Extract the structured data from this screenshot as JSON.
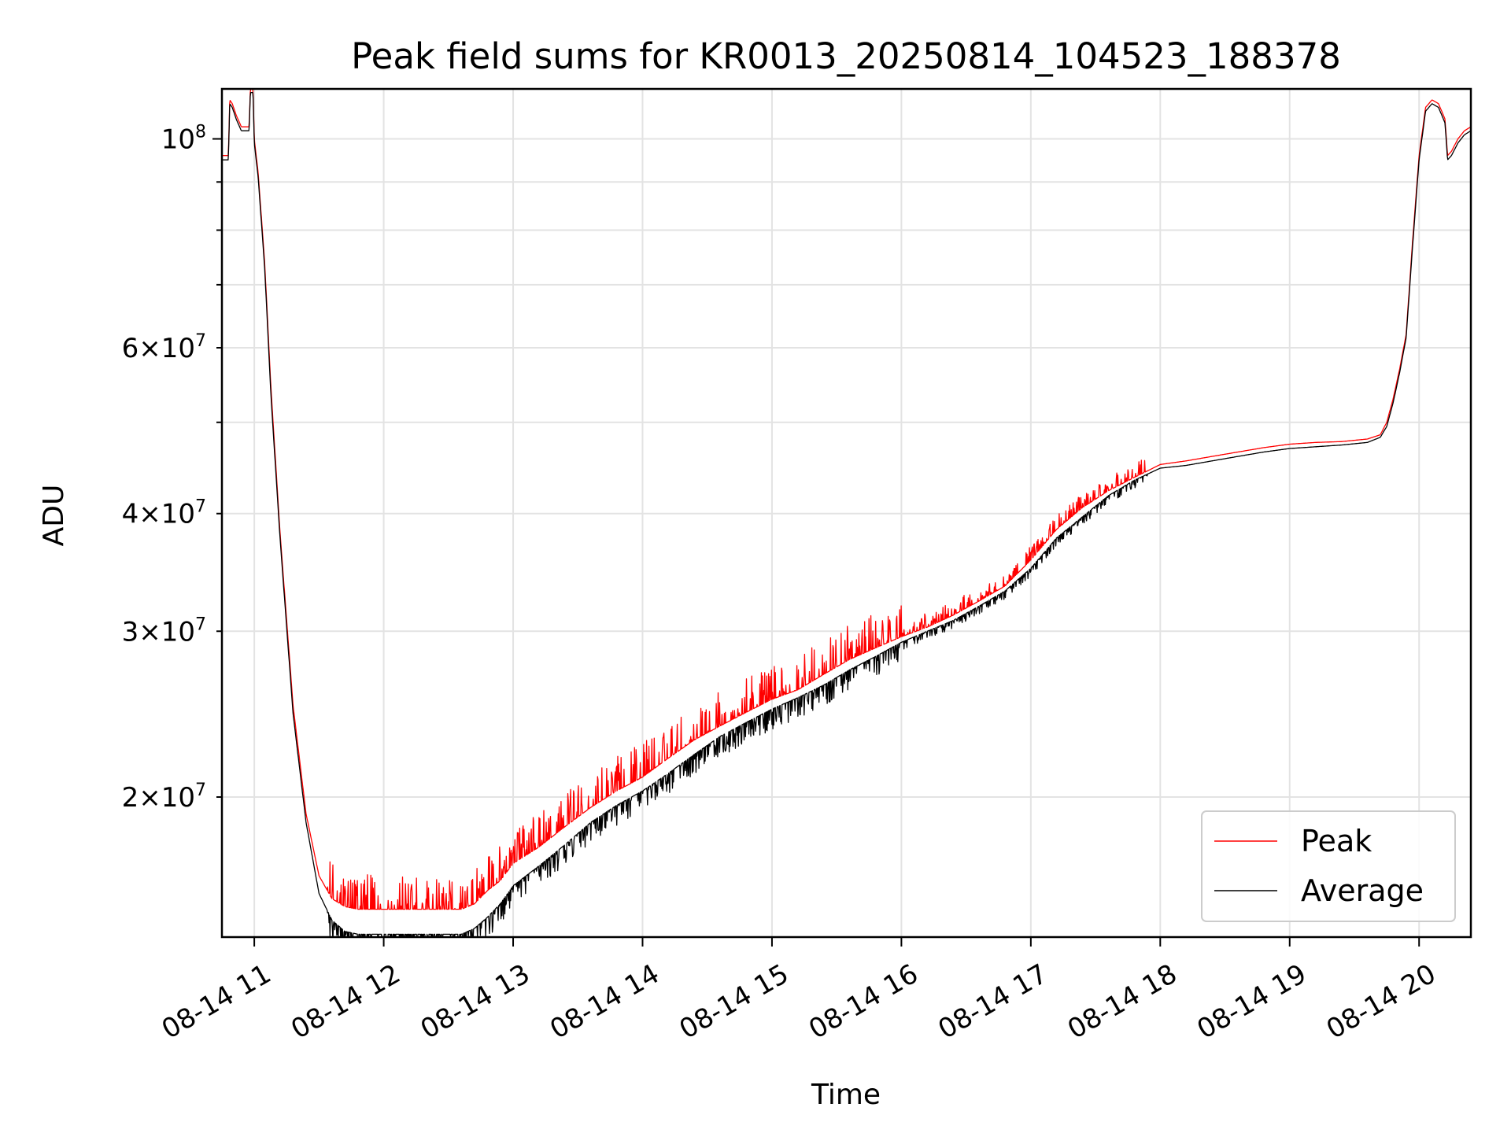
{
  "chart_data": {
    "type": "line",
    "title": "Peak field sums for KR0013_20250814_104523_188378",
    "xlabel": "Time",
    "ylabel": "ADU",
    "yscale": "log",
    "grid": true,
    "legend_position": "lower-right",
    "xlim": [
      10.75,
      20.4
    ],
    "ylim": [
      14200000,
      113000000
    ],
    "x_ticks": [
      {
        "value": 11,
        "label": "08-14 11"
      },
      {
        "value": 12,
        "label": "08-14 12"
      },
      {
        "value": 13,
        "label": "08-14 13"
      },
      {
        "value": 14,
        "label": "08-14 14"
      },
      {
        "value": 15,
        "label": "08-14 15"
      },
      {
        "value": 16,
        "label": "08-14 16"
      },
      {
        "value": 17,
        "label": "08-14 17"
      },
      {
        "value": 18,
        "label": "08-14 18"
      },
      {
        "value": 19,
        "label": "08-14 19"
      },
      {
        "value": 20,
        "label": "08-14 20"
      }
    ],
    "y_major_ticks": [
      {
        "value": 100000000,
        "mantissa": "",
        "exponent": "8"
      }
    ],
    "y_minor_ticks": [
      {
        "value": 20000000,
        "mantissa": "2",
        "exponent": "7"
      },
      {
        "value": 30000000,
        "mantissa": "3",
        "exponent": "7"
      },
      {
        "value": 40000000,
        "mantissa": "4",
        "exponent": "7"
      },
      {
        "value": 50000000,
        "mantissa": "",
        "exponent": ""
      },
      {
        "value": 60000000,
        "mantissa": "6",
        "exponent": "7"
      },
      {
        "value": 70000000,
        "mantissa": "",
        "exponent": ""
      },
      {
        "value": 80000000,
        "mantissa": "",
        "exponent": ""
      },
      {
        "value": 90000000,
        "mantissa": "",
        "exponent": ""
      }
    ],
    "series": [
      {
        "name": "Peak",
        "color": "#ff0000",
        "noise": 0.04,
        "x": [
          10.75,
          10.8,
          10.81,
          10.83,
          10.86,
          10.9,
          10.92,
          10.96,
          10.97,
          10.99,
          11.0,
          11.03,
          11.08,
          11.13,
          11.2,
          11.3,
          11.4,
          11.5,
          11.6,
          11.7,
          11.8,
          11.9,
          12.0,
          12.1,
          12.2,
          12.4,
          12.6,
          12.7,
          12.8,
          12.9,
          13.0,
          13.2,
          13.4,
          13.6,
          13.8,
          14.0,
          14.2,
          14.4,
          14.6,
          14.8,
          15.0,
          15.2,
          15.4,
          15.6,
          15.8,
          16.0,
          16.2,
          16.4,
          16.6,
          16.8,
          17.0,
          17.2,
          17.4,
          17.6,
          17.8,
          18.0,
          18.2,
          18.4,
          18.6,
          18.8,
          19.0,
          19.2,
          19.4,
          19.6,
          19.7,
          19.75,
          19.8,
          19.85,
          19.9,
          19.95,
          20.0,
          20.05,
          20.1,
          20.15,
          20.2,
          20.22,
          20.25,
          20.3,
          20.35,
          20.4
        ],
        "y": [
          96000000,
          96000000,
          110000000,
          109000000,
          106000000,
          103000000,
          103000000,
          103000000,
          113000000,
          113000000,
          100000000,
          92000000,
          74000000,
          54000000,
          38000000,
          25000000,
          19200000,
          16500000,
          15600000,
          15300000,
          15200000,
          15200000,
          15200000,
          15200000,
          15200000,
          15200000,
          15200000,
          15400000,
          15900000,
          16300000,
          17000000,
          17700000,
          18600000,
          19500000,
          20300000,
          21000000,
          22000000,
          23000000,
          23800000,
          24600000,
          25400000,
          26000000,
          27000000,
          28000000,
          28800000,
          29600000,
          30300000,
          31200000,
          32300000,
          33500000,
          35700000,
          38500000,
          40600000,
          42300000,
          43700000,
          45100000,
          45500000,
          46000000,
          46500000,
          47000000,
          47400000,
          47600000,
          47700000,
          48000000,
          48500000,
          50000000,
          53000000,
          57000000,
          62000000,
          78000000,
          96000000,
          108000000,
          110000000,
          109000000,
          105000000,
          96000000,
          97000000,
          100000000,
          102000000,
          103000000
        ]
      },
      {
        "name": "Average",
        "color": "#000000",
        "noise": 0.035,
        "x": [
          10.75,
          10.8,
          10.81,
          10.83,
          10.86,
          10.9,
          10.92,
          10.96,
          10.97,
          10.99,
          11.0,
          11.03,
          11.08,
          11.13,
          11.2,
          11.3,
          11.4,
          11.5,
          11.6,
          11.7,
          11.8,
          11.9,
          12.0,
          12.1,
          12.2,
          12.4,
          12.6,
          12.7,
          12.8,
          12.9,
          13.0,
          13.2,
          13.4,
          13.6,
          13.8,
          14.0,
          14.2,
          14.4,
          14.6,
          14.8,
          15.0,
          15.2,
          15.4,
          15.6,
          15.8,
          16.0,
          16.2,
          16.4,
          16.6,
          16.8,
          17.0,
          17.2,
          17.4,
          17.6,
          17.8,
          18.0,
          18.2,
          18.4,
          18.6,
          18.8,
          19.0,
          19.2,
          19.4,
          19.6,
          19.7,
          19.75,
          19.8,
          19.85,
          19.9,
          19.95,
          20.0,
          20.05,
          20.1,
          20.15,
          20.2,
          20.22,
          20.25,
          20.3,
          20.35,
          20.4
        ],
        "y": [
          95000000,
          95000000,
          109000000,
          108000000,
          105000000,
          102000000,
          102000000,
          102000000,
          112000000,
          112000000,
          99000000,
          91000000,
          73000000,
          53000000,
          37500000,
          24500000,
          18800000,
          15800000,
          14800000,
          14400000,
          14300000,
          14300000,
          14300000,
          14300000,
          14300000,
          14300000,
          14300000,
          14500000,
          14900000,
          15400000,
          16100000,
          16900000,
          17800000,
          18800000,
          19600000,
          20300000,
          21200000,
          22200000,
          23200000,
          24000000,
          24800000,
          25500000,
          26300000,
          27300000,
          28200000,
          29200000,
          30000000,
          30800000,
          31900000,
          33100000,
          35000000,
          37700000,
          39700000,
          41800000,
          43400000,
          44700000,
          45000000,
          45500000,
          46000000,
          46500000,
          46900000,
          47100000,
          47300000,
          47600000,
          48200000,
          49500000,
          52500000,
          56500000,
          61500000,
          77000000,
          95000000,
          107000000,
          109000000,
          108000000,
          104000000,
          95000000,
          96000000,
          99000000,
          101000000,
          102000000
        ]
      }
    ]
  }
}
